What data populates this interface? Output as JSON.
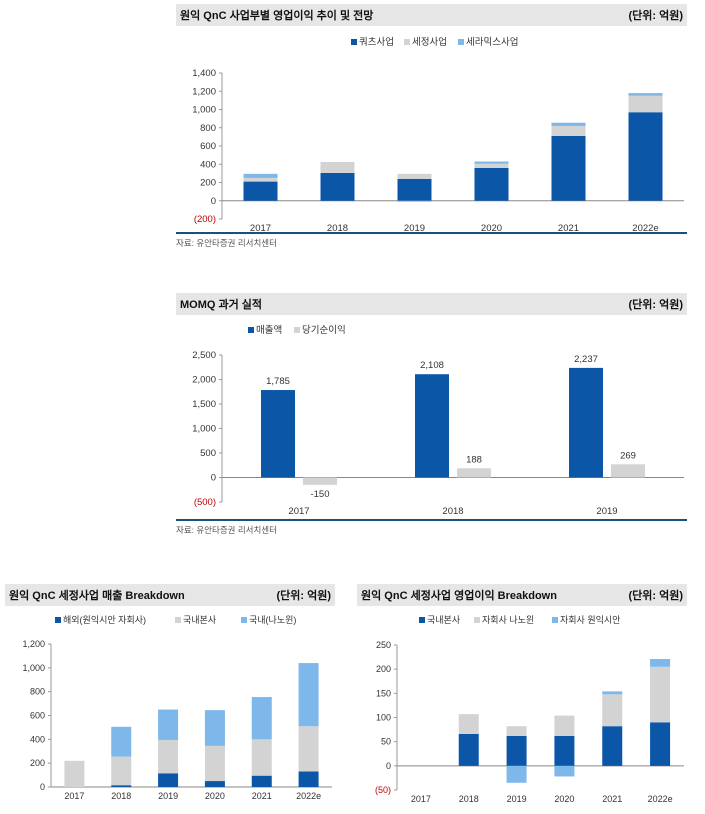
{
  "charts": [
    {
      "title": "원익 QnC 사업부별 영업이익 추이 및 전망",
      "unit": "(단위: 억원)",
      "source": "자료: 유안타증권 리서치센터",
      "legend": [
        "쿼츠사업",
        "세정사업",
        "세라믹스사업"
      ],
      "colors": [
        "#0b56a7",
        "#d3d3d3",
        "#7eb7ea"
      ]
    },
    {
      "title": "MOMQ 과거 실적",
      "unit": "(단위: 억원)",
      "source": "자료: 유안타증권 리서치센터",
      "legend": [
        "매출액",
        "당기순이익"
      ],
      "colors": [
        "#0b56a7",
        "#d3d3d3"
      ]
    },
    {
      "title": "원익 QnC 세정사업 매출 Breakdown",
      "unit": "(단위: 억원)",
      "legend": [
        "해외(원익시안 자회사)",
        "국내본사",
        "국내(나노윈)"
      ],
      "colors": [
        "#0b56a7",
        "#d3d3d3",
        "#7eb7ea"
      ]
    },
    {
      "title": "원익 QnC 세정사업 영업이익 Breakdown",
      "unit": "(단위: 억원)",
      "legend": [
        "국내본사",
        "자회사 나노윈",
        "자회사 원익시안"
      ],
      "colors": [
        "#0b56a7",
        "#d3d3d3",
        "#7eb7ea"
      ]
    }
  ],
  "chart_data": [
    {
      "type": "bar",
      "stacked": true,
      "categories": [
        "2017",
        "2018",
        "2019",
        "2020",
        "2021",
        "2022e"
      ],
      "series": [
        {
          "name": "쿼츠사업",
          "values": [
            210,
            305,
            240,
            360,
            710,
            970
          ]
        },
        {
          "name": "세정사업",
          "values": [
            40,
            120,
            55,
            45,
            110,
            180
          ]
        },
        {
          "name": "세라믹스사업",
          "values": [
            45,
            0,
            -10,
            25,
            35,
            30
          ]
        }
      ],
      "ylim": [
        -200,
        1400
      ],
      "yticks": [
        "(200)",
        "0",
        "200",
        "400",
        "600",
        "800",
        "1,000",
        "1,200",
        "1,400"
      ],
      "grid": false,
      "legend_position": "top"
    },
    {
      "type": "bar",
      "stacked": false,
      "categories": [
        "2017",
        "2018",
        "2019"
      ],
      "series": [
        {
          "name": "매출액",
          "values": [
            1785,
            2108,
            2237
          ],
          "labels": [
            "1,785",
            "2,108",
            "2,237"
          ]
        },
        {
          "name": "당기순이익",
          "values": [
            -150,
            188,
            269
          ],
          "labels": [
            "-150",
            "188",
            "269"
          ]
        }
      ],
      "ylim": [
        -500,
        2500
      ],
      "yticks": [
        "(500)",
        "0",
        "500",
        "1,000",
        "1,500",
        "2,000",
        "2,500"
      ],
      "grid": false,
      "legend_position": "top-left"
    },
    {
      "type": "bar",
      "stacked": true,
      "categories": [
        "2017",
        "2018",
        "2019",
        "2020",
        "2021",
        "2022e"
      ],
      "series": [
        {
          "name": "해외(원익시안 자회사)",
          "values": [
            0,
            15,
            115,
            50,
            95,
            130
          ]
        },
        {
          "name": "국내본사",
          "values": [
            220,
            240,
            280,
            295,
            305,
            380
          ]
        },
        {
          "name": "국내(나노윈)",
          "values": [
            0,
            250,
            255,
            300,
            355,
            530
          ]
        }
      ],
      "ylim": [
        0,
        1200
      ],
      "yticks": [
        "0",
        "200",
        "400",
        "600",
        "800",
        "1,000",
        "1,200"
      ],
      "grid": false,
      "legend_position": "top"
    },
    {
      "type": "bar",
      "stacked": true,
      "categories": [
        "2017",
        "2018",
        "2019",
        "2020",
        "2021",
        "2022e"
      ],
      "series": [
        {
          "name": "국내본사",
          "values": [
            0,
            66,
            62,
            62,
            82,
            90
          ]
        },
        {
          "name": "자회사 나노윈",
          "values": [
            0,
            41,
            20,
            42,
            66,
            115
          ]
        },
        {
          "name": "자회사 원익시안",
          "values": [
            0,
            0,
            -35,
            -22,
            6,
            16
          ]
        }
      ],
      "ylim": [
        -50,
        250
      ],
      "yticks": [
        "(50)",
        "0",
        "50",
        "100",
        "150",
        "200",
        "250"
      ],
      "grid": false,
      "legend_position": "top"
    }
  ]
}
